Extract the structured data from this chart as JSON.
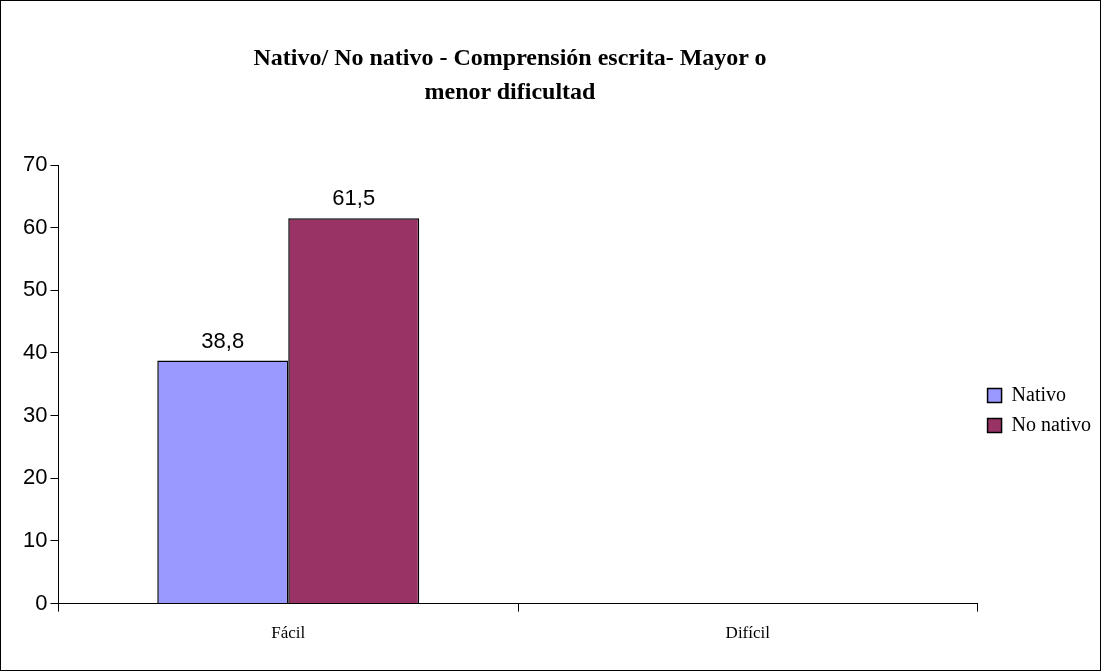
{
  "chart_data": {
    "type": "bar",
    "title": "Nativo/ No nativo - Comprensión escrita- Mayor o menor dificultad",
    "categories": [
      "Fácil",
      "Difícil"
    ],
    "series": [
      {
        "name": "Nativo",
        "color": "#9999ff",
        "values": [
          38.8,
          null
        ]
      },
      {
        "name": "No nativo",
        "color": "#993366",
        "values": [
          61.5,
          null
        ]
      }
    ],
    "ylim": [
      0,
      70
    ],
    "yticks": [
      0,
      10,
      20,
      30,
      40,
      50,
      60,
      70
    ],
    "grid": false,
    "legend": "right",
    "value_labels": [
      [
        "38,8",
        null
      ],
      [
        "61,5",
        null
      ]
    ]
  }
}
